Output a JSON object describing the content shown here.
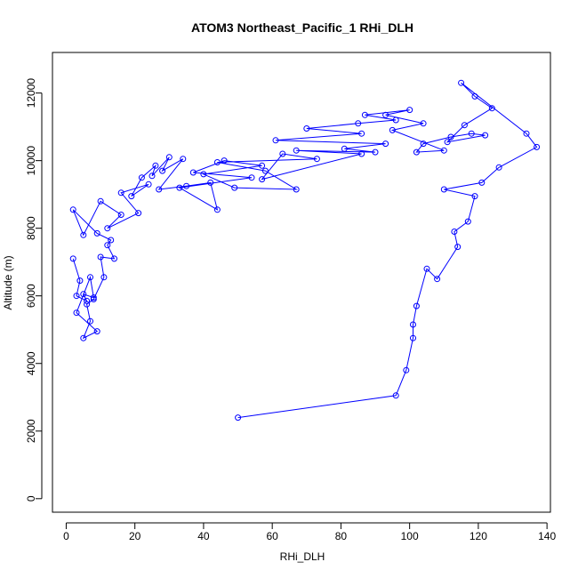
{
  "chart_data": {
    "type": "line",
    "title": "ATOM3 Northeast_Pacific_1 RHi_DLH",
    "xlabel": "RHi_DLH",
    "ylabel": "Altitude (m)",
    "xlim": [
      -4,
      141
    ],
    "ylim": [
      -400,
      13200
    ],
    "xticks": [
      0,
      20,
      40,
      60,
      80,
      100,
      120,
      140
    ],
    "yticks": [
      0,
      2000,
      4000,
      6000,
      8000,
      10000,
      12000
    ],
    "color": "#0000ff",
    "marker": "open-circle",
    "grid": false,
    "series": [
      {
        "x": [
          2,
          4,
          3,
          6,
          5,
          8,
          7,
          3,
          9,
          5,
          7,
          6,
          8,
          11,
          10,
          14,
          12,
          13,
          9,
          2,
          5,
          10,
          16,
          12,
          21,
          16,
          24,
          19,
          22,
          26,
          25,
          30,
          28,
          34,
          27,
          35,
          42,
          44,
          33,
          54,
          37,
          46,
          57,
          40,
          49,
          67,
          58,
          44,
          73,
          63,
          57,
          86,
          67,
          90,
          81,
          93,
          61,
          86,
          70,
          85,
          96,
          87,
          100,
          93,
          104,
          95,
          110,
          102,
          104,
          112,
          118,
          122,
          111,
          116,
          124,
          119,
          115,
          134,
          137,
          126,
          121,
          110,
          119,
          117,
          113,
          114,
          108,
          105,
          102,
          101,
          101,
          99,
          96,
          50
        ],
        "y": [
          7100,
          6450,
          6000,
          5850,
          6050,
          5950,
          6550,
          5500,
          4950,
          4750,
          5250,
          5750,
          5900,
          6550,
          7150,
          7100,
          7500,
          7650,
          7850,
          8550,
          7800,
          8800,
          8400,
          8000,
          8450,
          9050,
          9300,
          8950,
          9500,
          9850,
          9550,
          10100,
          9700,
          10050,
          9150,
          9250,
          9350,
          8550,
          9200,
          9500,
          9650,
          10000,
          9850,
          9600,
          9200,
          9150,
          9700,
          9950,
          10050,
          10200,
          9450,
          10200,
          10300,
          10250,
          10350,
          10500,
          10600,
          10800,
          10950,
          11100,
          11200,
          11350,
          11500,
          11350,
          11100,
          10900,
          10300,
          10250,
          10500,
          10700,
          10800,
          10750,
          10550,
          11050,
          11550,
          11900,
          12300,
          10800,
          10400,
          9800,
          9350,
          9150,
          8950,
          8200,
          7900,
          7450,
          6500,
          6800,
          5700,
          5150,
          4750,
          3800,
          3050,
          2400
        ]
      }
    ]
  }
}
